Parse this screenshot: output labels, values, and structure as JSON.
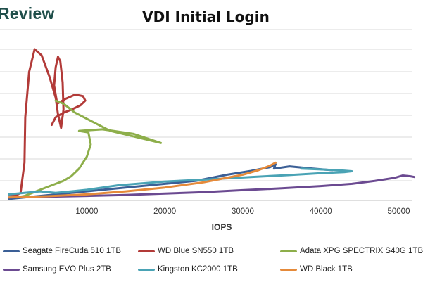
{
  "brand": {
    "wordmark": "Review"
  },
  "chart_data": {
    "type": "line",
    "title": "VDI Initial Login",
    "xlabel": "IOPS",
    "ylabel": "",
    "xlim": [
      0,
      52000
    ],
    "xticks": [
      10000,
      20000,
      30000,
      40000,
      50000
    ],
    "xtick_labels": [
      "10000",
      "20000",
      "30000",
      "40000",
      "50000"
    ],
    "ylim": [
      0,
      100
    ],
    "grid": true,
    "legend_position": "bottom",
    "series": [
      {
        "name": "Seagate FireCuda 510 1TB",
        "color": "#3b5f96",
        "x": [
          0,
          4000,
          8000,
          12000,
          16000,
          20000,
          24000,
          28000,
          31000,
          33500,
          34200,
          34000,
          36000,
          39000,
          41500
        ],
        "y": [
          1,
          3,
          5,
          7,
          9,
          11,
          13,
          17,
          19.5,
          22,
          24,
          21,
          22.5,
          21,
          20
        ]
      },
      {
        "name": "WD Blue SN550 1TB",
        "color": "#b23a38",
        "x": [
          0,
          800,
          1500,
          2000,
          2100,
          2600,
          3300,
          4200,
          5200,
          6000,
          6300,
          6700,
          7000,
          6900,
          6600,
          6300,
          6000,
          5800,
          6200,
          7200,
          8500,
          9500,
          9800,
          9200,
          8000,
          7000,
          6000,
          5500
        ],
        "y": [
          4,
          3,
          5,
          25,
          55,
          85,
          100,
          96,
          82,
          68,
          57,
          48,
          60,
          78,
          92,
          95,
          88,
          76,
          64,
          67,
          70,
          69,
          66,
          63,
          60,
          58,
          55,
          50
        ]
      },
      {
        "name": "Adata XPG SPECTRIX S40G 1TB",
        "color": "#8dae4a",
        "x": [
          1000,
          2000,
          3000,
          4000,
          5000,
          6000,
          7000,
          8000,
          9000,
          10000,
          10500,
          10200,
          9000,
          12000,
          16000,
          19500,
          13000,
          8500,
          7000,
          6000
        ],
        "y": [
          2,
          3,
          5,
          7,
          9,
          11,
          13,
          16,
          21,
          29,
          37,
          45,
          46,
          47,
          44,
          38,
          46,
          58,
          64,
          66
        ]
      },
      {
        "name": "Samsung EVO Plus 2TB",
        "color": "#6b4a91",
        "x": [
          0,
          5000,
          10000,
          15000,
          20000,
          25000,
          30000,
          35000,
          40000,
          44000,
          47000,
          49500,
          50500,
          51500,
          52000
        ],
        "y": [
          2,
          2.4,
          3,
          3.6,
          4.5,
          5.5,
          6.8,
          8,
          9.5,
          11,
          13,
          15,
          16.5,
          16,
          15.5
        ]
      },
      {
        "name": "Kingston KC2000 1TB",
        "color": "#4aa3b5",
        "x": [
          0,
          2000,
          4000,
          6000,
          8000,
          10000,
          14000,
          20000,
          26000,
          31000,
          36000,
          40000,
          43000,
          44000,
          43000,
          40000,
          37500
        ],
        "y": [
          4,
          5,
          6,
          5,
          6,
          7,
          10,
          12.5,
          14,
          15.5,
          16.8,
          18,
          18.7,
          19.3,
          19.7,
          20.5,
          21
        ]
      },
      {
        "name": "WD Black 1TB",
        "color": "#e58a3a",
        "x": [
          0,
          5000,
          10000,
          15000,
          20000,
          25000,
          30000,
          32000,
          33500,
          34200
        ],
        "y": [
          2,
          2.8,
          4,
          6,
          8.5,
          12,
          17,
          20,
          23,
          25
        ]
      }
    ]
  }
}
